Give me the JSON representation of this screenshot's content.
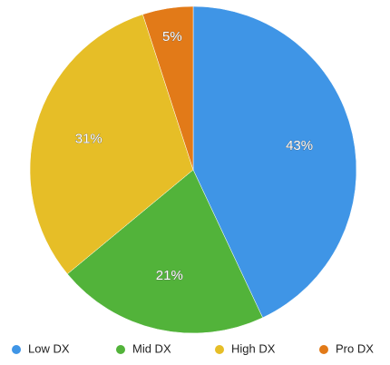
{
  "chart_data": {
    "type": "pie",
    "categories": [
      "Low DX",
      "Mid DX",
      "High DX",
      "Pro DX"
    ],
    "values": [
      43,
      21,
      31,
      5
    ],
    "value_labels": [
      "43%",
      "21%",
      "31%",
      "5%"
    ],
    "colors": [
      "#3f95e6",
      "#52b33a",
      "#e6be27",
      "#e27a18"
    ],
    "legend": "bottom"
  }
}
